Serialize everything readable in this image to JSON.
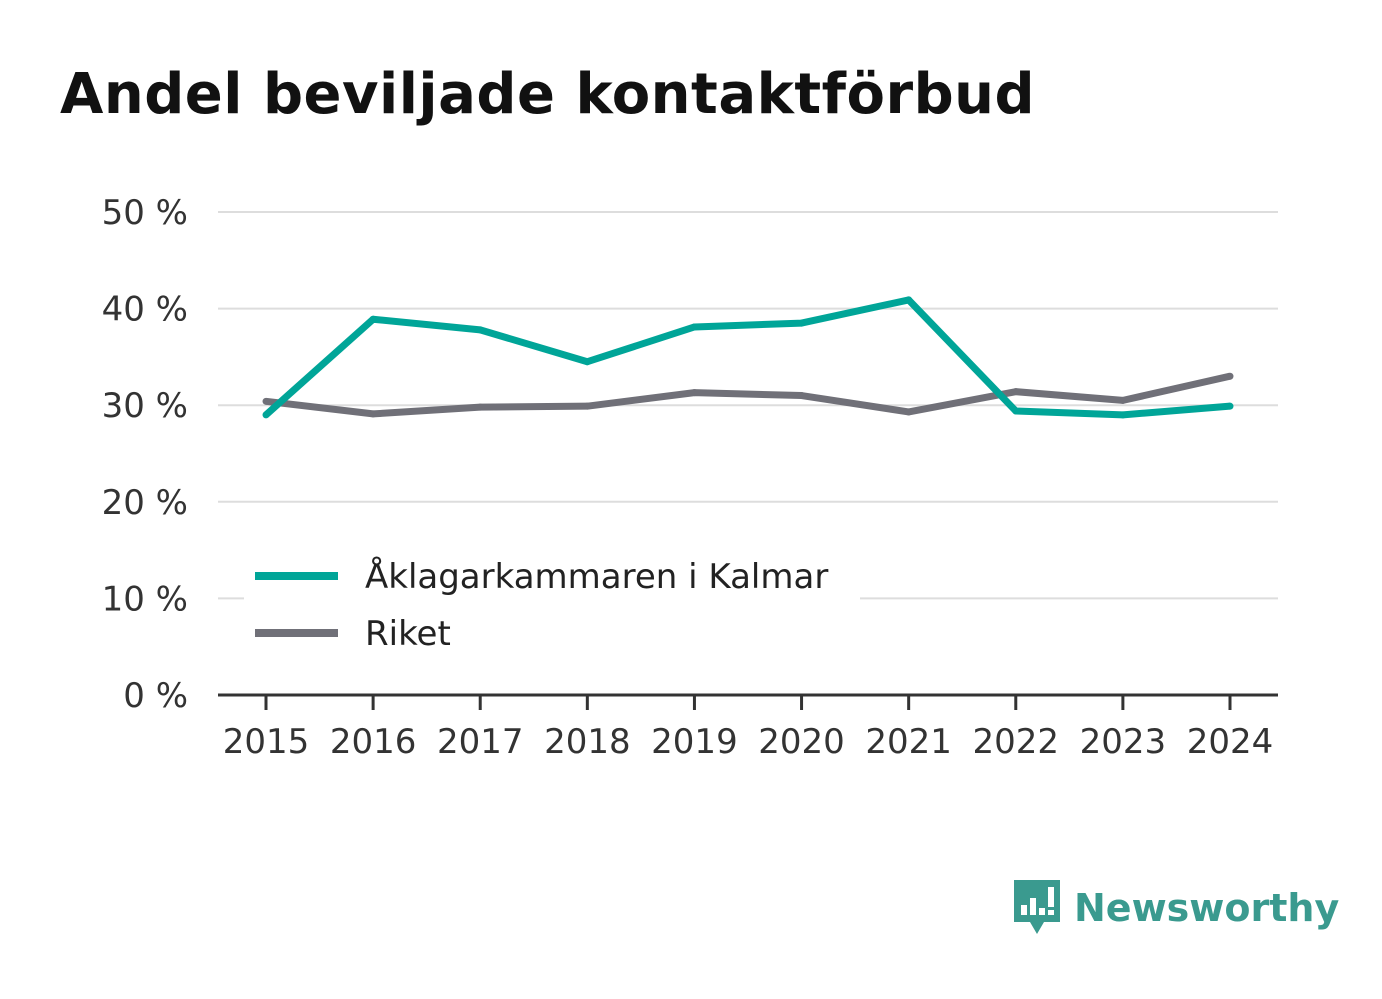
{
  "title": "Andel beviljade kontaktförbud",
  "brand": {
    "name": "Newsworthy",
    "color": "#3a9a8f",
    "icon": "bar-chart-speech-bubble-icon"
  },
  "chart_data": {
    "type": "line",
    "x": [
      "2015",
      "2016",
      "2017",
      "2018",
      "2019",
      "2020",
      "2021",
      "2022",
      "2023",
      "2024"
    ],
    "y_ticks": [
      "0 %",
      "10 %",
      "20 %",
      "30 %",
      "40 %",
      "50 %"
    ],
    "ylim": [
      0,
      50
    ],
    "grid": true,
    "legend": {
      "position": "bottom-left",
      "visible": true
    },
    "series": [
      {
        "name": "Åklagarkammaren i Kalmar",
        "color": "#00a598",
        "values": [
          29.0,
          38.9,
          37.8,
          34.5,
          38.1,
          38.5,
          40.9,
          29.4,
          29.0,
          29.9
        ]
      },
      {
        "name": "Riket",
        "color": "#707078",
        "values": [
          30.4,
          29.1,
          29.8,
          29.9,
          31.3,
          31.0,
          29.3,
          31.4,
          30.5,
          33.0
        ]
      }
    ]
  }
}
